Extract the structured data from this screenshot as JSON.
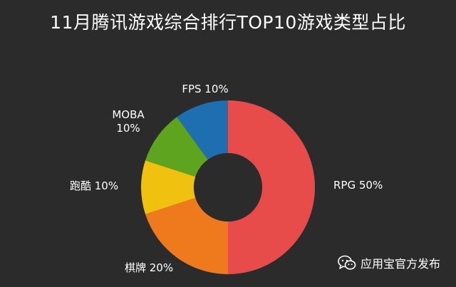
{
  "chart_data": {
    "type": "pie",
    "subtype": "donut",
    "title": "11月腾讯游戏综合排行TOP10游戏类型占比",
    "slices": [
      {
        "label": "RPG",
        "value": 50,
        "display": "RPG 50%",
        "color": "#e84c4a"
      },
      {
        "label": "棋牌",
        "value": 20,
        "display": "棋牌 20%",
        "color": "#ef7a1e"
      },
      {
        "label": "跑酷",
        "value": 10,
        "display": "跑酷 10%",
        "color": "#f0c10f"
      },
      {
        "label": "MOBA",
        "value": 10,
        "display": [
          "MOBA",
          "10%"
        ],
        "color": "#5ea41f"
      },
      {
        "label": "FPS",
        "value": 10,
        "display": "FPS 10%",
        "color": "#1e6fb0"
      }
    ],
    "start_angle": "12 o'clock",
    "direction": "clockwise",
    "legend": "none"
  },
  "watermark": {
    "text": "应用宝官方发布",
    "icon": "wechat-icon"
  },
  "colors": {
    "background": "#2b2b2b",
    "text": "#ffffff"
  }
}
